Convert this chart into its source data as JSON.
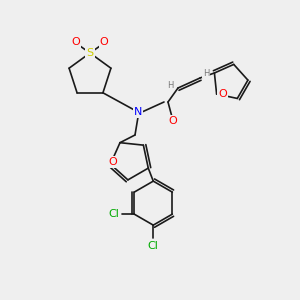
{
  "bg_color": "#efefef",
  "bond_color": "#1a1a1a",
  "atom_colors": {
    "O": "#ff0000",
    "S": "#cccc00",
    "N": "#0000ff",
    "Cl": "#00aa00",
    "C": "#1a1a1a",
    "H": "#777777"
  },
  "font_size": 7,
  "lw": 1.2
}
